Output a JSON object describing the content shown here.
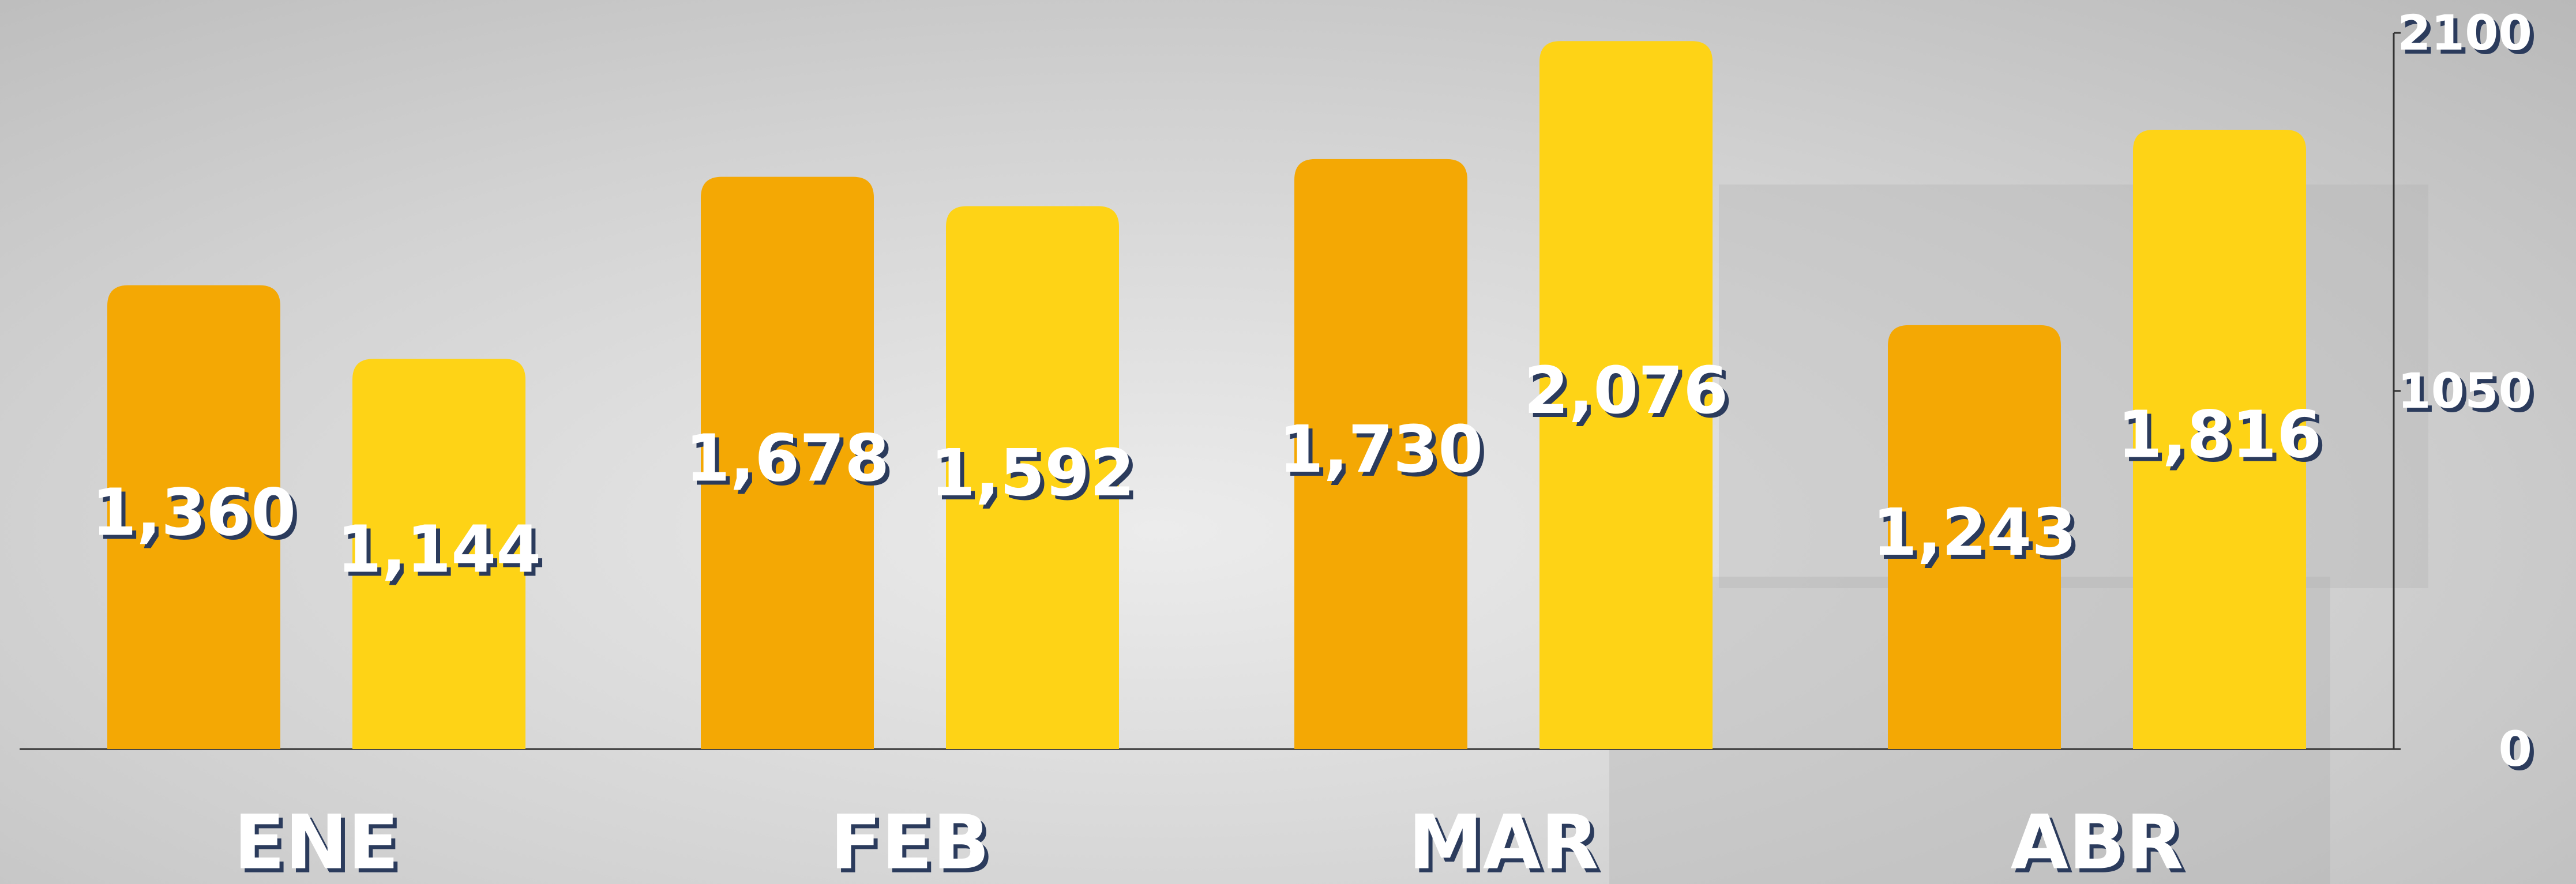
{
  "chart_data": {
    "type": "bar",
    "categories": [
      "ENE",
      "FEB",
      "MAR",
      "ABR"
    ],
    "series": [
      {
        "color": "#f4a804",
        "values": [
          1360,
          1678,
          1730,
          1243
        ],
        "value_labels": [
          "1,360",
          "1,678",
          "1,730",
          "1,243"
        ]
      },
      {
        "color": "#fed316",
        "values": [
          1144,
          1592,
          2076,
          1816
        ],
        "value_labels": [
          "1,144",
          "1,592",
          "2,076",
          "1,816"
        ]
      }
    ],
    "ylim": [
      0,
      2100
    ],
    "yticks": [
      0,
      1050,
      2100
    ],
    "y_axis_side": "right"
  }
}
